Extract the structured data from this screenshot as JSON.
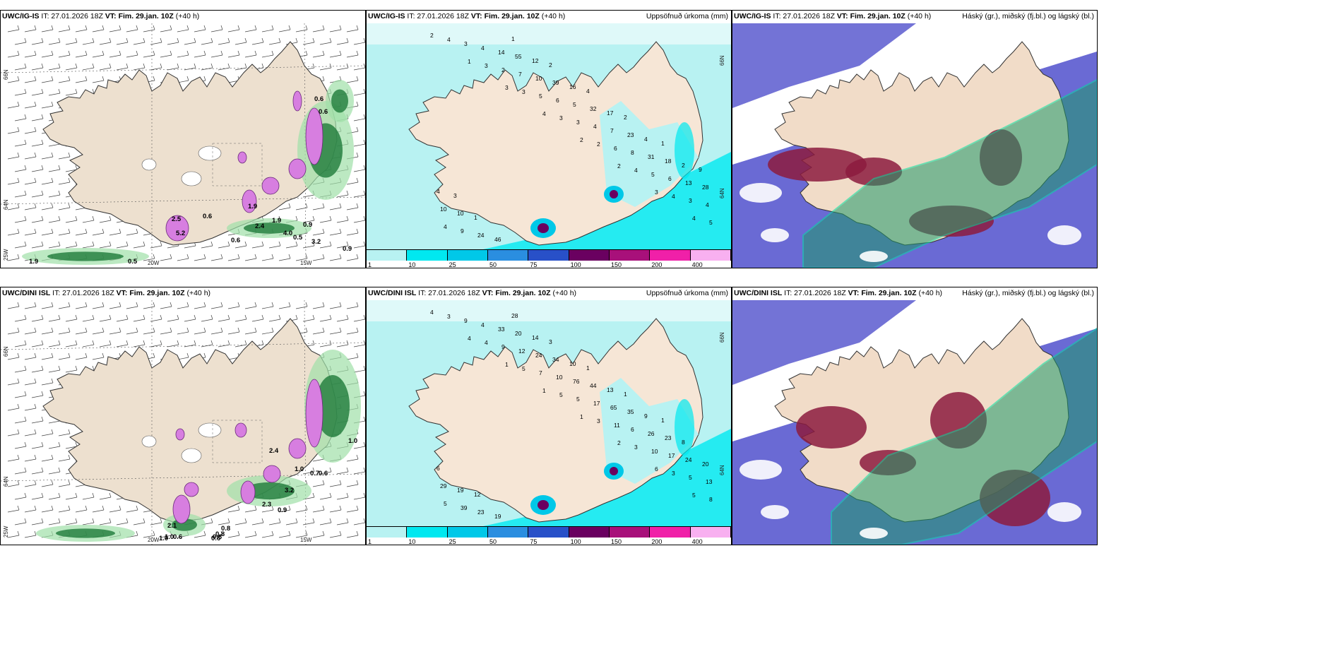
{
  "rows": [
    {
      "row_id": "ig",
      "panels": [
        {
          "model": "UWC/IG-IS",
          "it": "IT: 27.01.2026 18Z",
          "vt": "VT: Fim. 29.jan. 10Z",
          "lead": "(+40 h)",
          "right": ""
        },
        {
          "model": "UWC/IG-IS",
          "it": "IT: 27.01.2026 18Z",
          "vt": "VT: Fim. 29.jan. 10Z",
          "lead": "(+40 h)",
          "right": "Uppsöfnuð úrkoma (mm)"
        },
        {
          "model": "UWC/IG-IS",
          "it": "IT: 27.01.2026 18Z",
          "vt": "VT: Fim. 29.jan. 10Z",
          "lead": "(+40 h)",
          "right": "Háský (gr.), miðský (fj.bl.) og lágský (bl.)"
        }
      ]
    },
    {
      "row_id": "dini",
      "panels": [
        {
          "model": "UWC/DINI ISL",
          "it": "IT: 27.01.2026 18Z",
          "vt": "VT: Fim. 29.jan. 10Z",
          "lead": "(+40 h)",
          "right": ""
        },
        {
          "model": "UWC/DINI ISL",
          "it": "IT: 27.01.2026 18Z",
          "vt": "VT: Fim. 29.jan. 10Z",
          "lead": "(+40 h)",
          "right": "Uppsöfnuð úrkoma (mm)"
        },
        {
          "model": "UWC/DINI ISL",
          "it": "IT: 27.01.2026 18Z",
          "vt": "VT: Fim. 29.jan. 10Z",
          "lead": "(+40 h)",
          "right": "Háský (gr.), miðský (fj.bl.) og lágský (bl.)"
        }
      ]
    }
  ],
  "axes": {
    "lat66": "66N",
    "lat64": "64N",
    "lon25": "25W",
    "lon20": "20W",
    "lon15": "15W"
  },
  "colorbar": {
    "ticks": [
      "1",
      "10",
      "25",
      "50",
      "75",
      "100",
      "150",
      "200",
      "400"
    ],
    "colors": [
      "#b8f2f2",
      "#00e8f0",
      "#00c8e8",
      "#2a8ee0",
      "#2850c8",
      "#6a0060",
      "#a8107a",
      "#f020a8",
      "#f8b0f0"
    ]
  },
  "precip_values": {
    "ig": [
      "2",
      "1",
      "3",
      "4",
      "2",
      "2",
      "3",
      "4",
      "4",
      "3",
      "3",
      "3",
      "2",
      "4",
      "4",
      "5",
      "3",
      "2",
      "5",
      "3",
      "6",
      "5",
      "3",
      "4",
      "4",
      "7",
      "6",
      "4",
      "8",
      "6",
      "4",
      "9",
      "14",
      "10",
      "5",
      "7",
      "31",
      "13",
      "10",
      "24",
      "55",
      "39",
      "32",
      "23",
      "18",
      "28",
      "10",
      "46",
      "12",
      "16",
      "17",
      "4",
      "2",
      "4",
      "1",
      "1",
      "2",
      "4",
      "2",
      "1",
      "9",
      "3"
    ],
    "dini": [
      "4",
      "4",
      "1",
      "1",
      "1",
      "2",
      "6",
      "5",
      "3",
      "4",
      "5",
      "5",
      "3",
      "3",
      "3",
      "8",
      "9",
      "9",
      "7",
      "5",
      "11",
      "10",
      "5",
      "5",
      "4",
      "12",
      "10",
      "17",
      "6",
      "17",
      "13",
      "39",
      "33",
      "24",
      "76",
      "65",
      "26",
      "24",
      "29",
      "23",
      "20",
      "34",
      "44",
      "35",
      "23",
      "20",
      "19",
      "19",
      "14",
      "10",
      "13",
      "9",
      "8",
      "6",
      "12",
      "28",
      "3",
      "1",
      "1",
      "1"
    ]
  },
  "wind_values": {
    "ig": [
      "0.6",
      "0.6",
      "0.6",
      "2.4",
      "4.0",
      "0.9",
      "0.5",
      "0.6",
      "3.2",
      "1.9",
      "0.5",
      "0.9",
      "1.9",
      "1.9",
      "2.5",
      "5.2"
    ],
    "dini": [
      "1.0",
      "0.7",
      "0.6",
      "3.2",
      "2.3",
      "0.9",
      "0.8",
      "0.8",
      "0.6",
      "1.0",
      "2.1",
      "0.6",
      "0.6",
      "2.4",
      "1.0",
      "1.0"
    ]
  }
}
